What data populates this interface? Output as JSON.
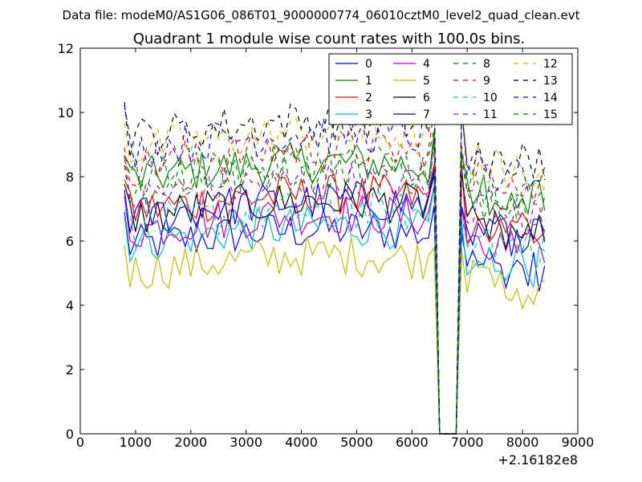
{
  "chart_data": {
    "type": "line",
    "suptitle": "Data file: modeM0/AS1G06_086T01_9000000774_06010cztM0_level2_quad_clean.evt",
    "title": "Quadrant 1 module wise count rates with 100.0s bins.",
    "xlabel": "",
    "ylabel": "",
    "x_offset_label": "+2.16182e8",
    "xlim": [
      0,
      9000
    ],
    "ylim": [
      0,
      12
    ],
    "xticks": [
      0,
      1000,
      2000,
      3000,
      4000,
      5000,
      6000,
      7000,
      8000,
      9000
    ],
    "yticks": [
      0,
      2,
      4,
      6,
      8,
      10,
      12
    ],
    "grid": false,
    "legend_position": "top-right",
    "legend_columns": 4,
    "x": {
      "start": 800,
      "step": 100,
      "count": 77
    },
    "gap": {
      "from_x": 6500,
      "to_x": 6800,
      "value": 0
    },
    "series": [
      {
        "name": "0",
        "color": "#0000ff",
        "style": "solid",
        "level": 5.8,
        "drop": 0.9
      },
      {
        "name": "1",
        "color": "#008000",
        "style": "solid",
        "level": 7.9,
        "drop": 0.9
      },
      {
        "name": "2",
        "color": "#ff0000",
        "style": "solid",
        "level": 6.9,
        "drop": 0.8
      },
      {
        "name": "3",
        "color": "#00bfbf",
        "style": "solid",
        "level": 5.9,
        "drop": 0.9
      },
      {
        "name": "4",
        "color": "#bf00bf",
        "style": "solid",
        "level": 6.3,
        "drop": 0.8
      },
      {
        "name": "5",
        "color": "#bfbf00",
        "style": "solid",
        "level": 5.0,
        "drop": 0.7
      },
      {
        "name": "6",
        "color": "#000000",
        "style": "solid",
        "level": 6.7,
        "drop": 0.8
      },
      {
        "name": "7",
        "color": "#0000ff",
        "style": "solid",
        "level": 6.7,
        "drop": 0.7
      },
      {
        "name": "8",
        "color": "#008000",
        "style": "dashed",
        "level": 7.6,
        "drop": 0.8
      },
      {
        "name": "9",
        "color": "#ff0000",
        "style": "dashed",
        "level": 8.3,
        "drop": 0.8
      },
      {
        "name": "10",
        "color": "#00bfbf",
        "style": "dashed",
        "level": 6.4,
        "drop": 0.7
      },
      {
        "name": "11",
        "color": "#bf00bf",
        "style": "dashed",
        "level": 7.3,
        "drop": 0.8
      },
      {
        "name": "12",
        "color": "#bfbf00",
        "style": "dashed",
        "level": 8.8,
        "drop": 0.9
      },
      {
        "name": "13",
        "color": "#000000",
        "style": "dashed",
        "level": 9.2,
        "drop": 1.0
      },
      {
        "name": "14",
        "color": "#0000ff",
        "style": "dashed",
        "level": 8.8,
        "drop": 1.0
      },
      {
        "name": "15",
        "color": "#008000",
        "style": "dashed",
        "level": 7.9,
        "drop": 0.8
      }
    ]
  }
}
